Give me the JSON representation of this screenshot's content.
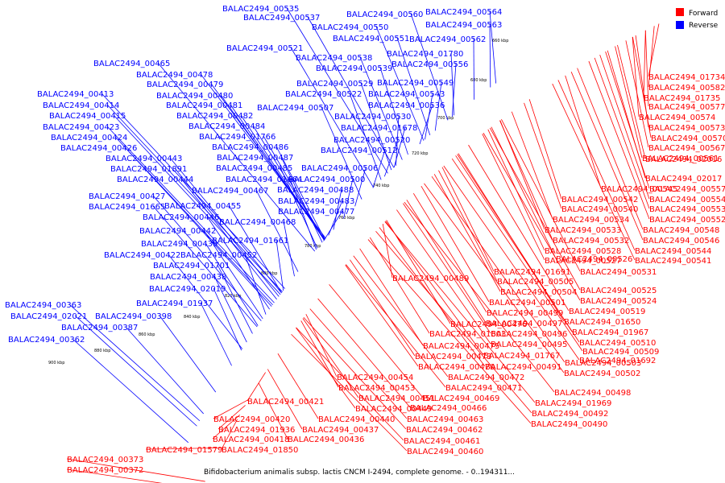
{
  "caption": "Bifidobacterium animalis subsp. lactis CNCM I-2494, complete genome. - 0..194311...",
  "legend": [
    {
      "label": "Forward",
      "color": "#ff0000"
    },
    {
      "label": "Reverse",
      "color": "#0000ff"
    }
  ],
  "scale_ticks": [
    "660 kbp",
    "680 kbp",
    "700 kbp",
    "720 kbp",
    "740 kbp",
    "760 kbp",
    "780 kbp",
    "800 kbp",
    "820 kbp",
    "840 kbp",
    "860 kbp",
    "880 kbp",
    "900 kbp"
  ],
  "reverse_labels": [
    "BALAC2494_00535",
    "BALAC2494_00537",
    "BALAC2494_00560",
    "BALAC2494_00564",
    "BALAC2494_00550",
    "BALAC2494_00563",
    "BALAC2494_00551",
    "BALAC2494_00562",
    "BALAC2494_00521",
    "BALAC2494_01780",
    "BALAC2494_00538",
    "BALAC2494_00556",
    "BALAC2494_00539",
    "BALAC2494_00465",
    "BALAC2494_00478",
    "BALAC2494_00479",
    "BALAC2494_00529",
    "BALAC2494_00549",
    "BALAC2494_00522",
    "BALAC2494_00543",
    "BALAC2494_00413",
    "BALAC2494_00480",
    "BALAC2494_00536",
    "BALAC2494_00507",
    "BALAC2494_00414",
    "BALAC2494_00481",
    "BALAC2494_00415",
    "BALAC2494_00482",
    "BALAC2494_00530",
    "BALAC2494_00423",
    "BALAC2494_00484",
    "BALAC2494_01678",
    "BALAC2494_00424",
    "BALAC2494_01766",
    "BALAC2494_00520",
    "BALAC2494_00426",
    "BALAC2494_00486",
    "BALAC2494_00512",
    "BALAC2494_00443",
    "BALAC2494_00487",
    "BALAC2494_01891",
    "BALAC2494_00485",
    "BALAC2494_00506",
    "BALAC2494_00444",
    "BALAC2494_01664",
    "BALAC2494_00500",
    "BALAC2494_00467",
    "BALAC2494_00488",
    "BALAC2494_00427",
    "BALAC2494_00483",
    "BALAC2494_01665",
    "BALAC2494_00455",
    "BALAC2494_00477",
    "BALAC2494_00446",
    "BALAC2494_00468",
    "BALAC2494_00442",
    "BALAC2494_01661",
    "BALAC2494_00439",
    "BALAC2494_00422",
    "BALAC2494_00452",
    "BALAC2494_01701",
    "BALAC2494_00438",
    "BALAC2494_02019",
    "BALAC2494_00363",
    "BALAC2494_01937",
    "BALAC2494_02021",
    "BALAC2494_00398",
    "BALAC2494_00387",
    "BALAC2494_00362"
  ],
  "forward_labels": [
    "BALAC2494_01734",
    "BALAC2494_00582",
    "BALAC2494_01735",
    "BALAC2494_00577",
    "BALAC2494_00574",
    "BALAC2494_00573",
    "BALAC2494_00570",
    "BALAC2494_00567",
    "BALAC2494_00561",
    "BALAC2494_02016",
    "BALAC2494_02017",
    "BALAC2494_00545",
    "BALAC2494_00557",
    "BALAC2494_00542",
    "BALAC2494_00554",
    "BALAC2494_00540",
    "BALAC2494_00553",
    "BALAC2494_00534",
    "BALAC2494_00552",
    "BALAC2494_00533",
    "BALAC2494_00548",
    "BALAC2494_00532",
    "BALAC2494_00546",
    "BALAC2494_00528",
    "BALAC2494_00544",
    "BALAC2494_00527",
    "BALAC2494_00541",
    "BALAC2494_01691",
    "BALAC2494_00526",
    "BALAC2494_00531",
    "BALAC2494_00489",
    "BALAC2494_00505",
    "BALAC2494_00504",
    "BALAC2494_00525",
    "BALAC2494_00501",
    "BALAC2494_00524",
    "BALAC2494_00499",
    "BALAC2494_00519",
    "BALAC2494_00476",
    "BALAC2494_00497",
    "BALAC2494_01650",
    "BALAC2494_01603",
    "BALAC2494_00496",
    "BALAC2494_01967",
    "BALAC2494_00475",
    "BALAC2494_00495",
    "BALAC2494_00510",
    "BALAC2494_00473",
    "BALAC2494_01767",
    "BALAC2494_01692",
    "BALAC2494_00509",
    "BALAC2494_00470",
    "BALAC2494_00491",
    "BALAC2494_00503",
    "BALAC2494_00454",
    "BALAC2494_00472",
    "BALAC2494_00502",
    "BALAC2494_00453",
    "BALAC2494_00471",
    "BALAC2494_00498",
    "BALAC2494_00421",
    "BALAC2494_00451",
    "BALAC2494_00469",
    "BALAC2494_01969",
    "BALAC2494_00449",
    "BALAC2494_00466",
    "BALAC2494_00492",
    "BALAC2494_00420",
    "BALAC2494_00440",
    "BALAC2494_00463",
    "BALAC2494_00490",
    "BALAC2494_01936",
    "BALAC2494_00437",
    "BALAC2494_00462",
    "BALAC2494_00418",
    "BALAC2494_00436",
    "BALAC2494_00461",
    "BALAC2494_01579",
    "BALAC2494_01850",
    "BALAC2494_00460",
    "BALAC2494_00373",
    "BALAC2494_00372"
  ]
}
